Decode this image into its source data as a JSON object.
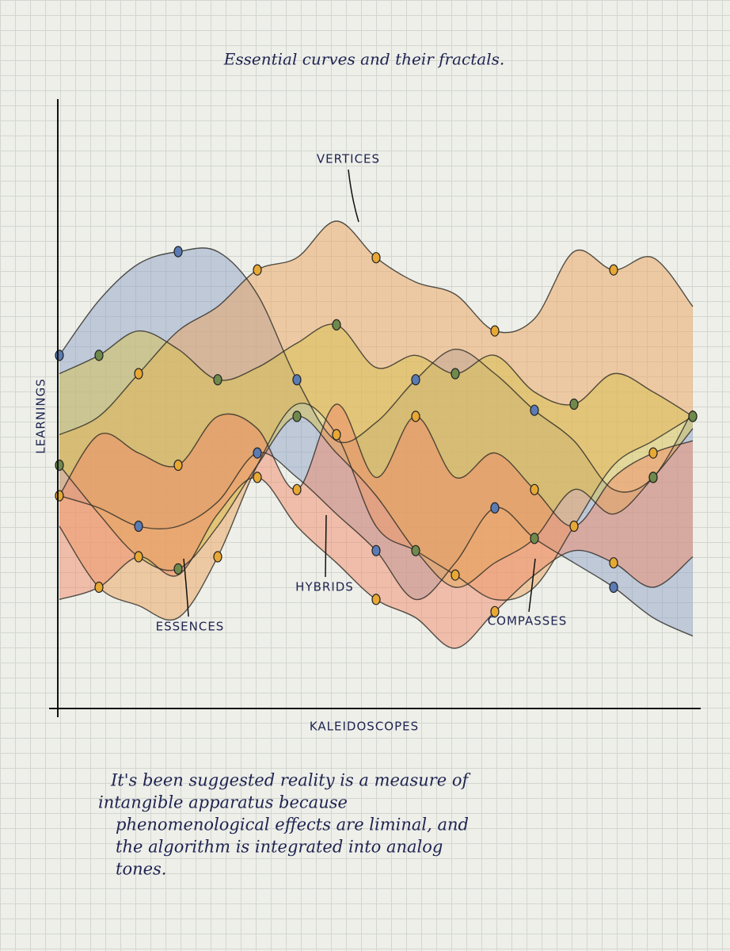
{
  "chart_data": {
    "type": "area-band",
    "title": "Essential curves and their fractals.",
    "x_label": "KALEIDOSCOPES",
    "y_label": "LEARNINGS",
    "annotations": [
      "VERTICES",
      "HYBRIDS",
      "ESSENCES",
      "COMPASSES"
    ],
    "caption": [
      "It's been suggested reality is a measure of",
      "intangible apparatus because",
      "phenomenological effects are liminal, and",
      "the algorithm is integrated into analog",
      "tones."
    ],
    "x": [
      0,
      1,
      2,
      3,
      4,
      5,
      6,
      7,
      8,
      9,
      10,
      11,
      12,
      13,
      14,
      15,
      16
    ],
    "xlim": [
      0,
      16
    ],
    "ylim": [
      0,
      100
    ],
    "series": [
      {
        "color": "#8fa3c8",
        "marker_color": "#5b7bb5",
        "high": [
          58,
          67,
          73,
          75,
          75,
          68,
          54,
          44,
          47,
          54,
          59,
          55,
          49,
          44,
          36,
          38,
          49
        ],
        "low": [
          35,
          33,
          30,
          30,
          34,
          42,
          38,
          32,
          26,
          18,
          24,
          33,
          28,
          24,
          20,
          15,
          12
        ]
      },
      {
        "color": "#eba35e",
        "marker_color": "#e8a834",
        "high": [
          45,
          48,
          55,
          62,
          66,
          72,
          74,
          80,
          74,
          70,
          68,
          62,
          64,
          75,
          72,
          74,
          66
        ],
        "low": [
          30,
          20,
          17,
          15,
          25,
          40,
          50,
          45,
          30,
          26,
          22,
          18,
          20,
          30,
          40,
          44,
          48
        ]
      },
      {
        "color": "#d8c24e",
        "marker_color": "#6f8a4c",
        "high": [
          55,
          58,
          62,
          59,
          54,
          56,
          60,
          63,
          56,
          58,
          55,
          58,
          52,
          50,
          55,
          52,
          48
        ],
        "low": [
          40,
          32,
          25,
          23,
          30,
          40,
          48,
          42,
          35,
          26,
          20,
          24,
          28,
          36,
          32,
          38,
          46
        ]
      },
      {
        "color": "#ef8c6a",
        "marker_color": "#e8a834",
        "high": [
          35,
          45,
          42,
          40,
          48,
          46,
          36,
          50,
          38,
          48,
          38,
          42,
          36,
          30,
          38,
          42,
          44
        ],
        "low": [
          18,
          20,
          25,
          22,
          32,
          38,
          30,
          24,
          18,
          15,
          10,
          16,
          22,
          26,
          24,
          20,
          25
        ]
      }
    ]
  }
}
